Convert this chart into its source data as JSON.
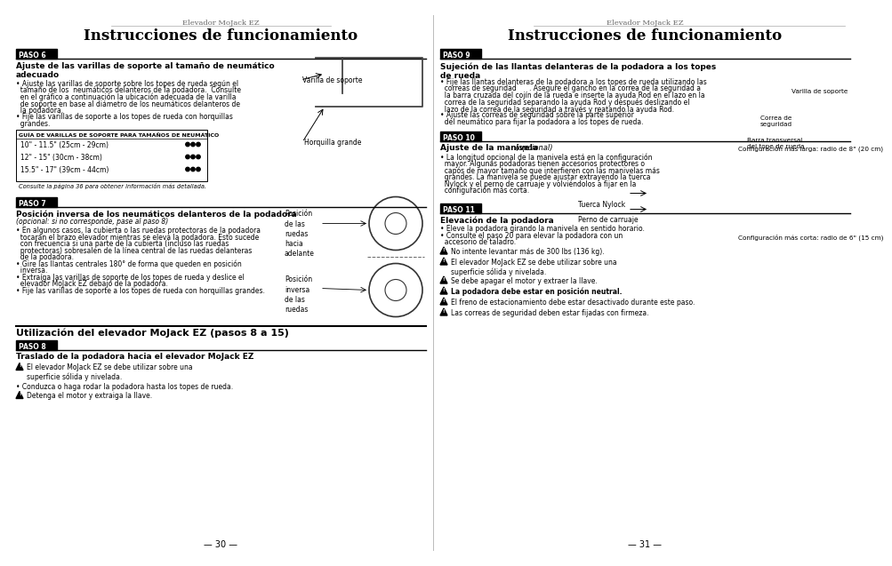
{
  "bg_color": "#ffffff",
  "left_header_small": "Elevador MoJack EZ",
  "left_title": "Instrucciones de funcionamiento",
  "right_header_small": "Elevador MoJack EZ",
  "right_title": "Instrucciones de funcionamiento",
  "page_left": "— 30 —",
  "page_right": "— 31 —",
  "paso6_label": "PASO 6",
  "paso6_heading": "Ajuste de las varillas de soporte al tamaño de neumático\nadecuado",
  "paso6_body": [
    "• Ajuste las varillas de soporte sobre los topes de rueda según el",
    "  tamaño de los  neumáticos delanteros de la podadora.  Consulte",
    "  en el gráfico a continuación la ubicación adecuada de la varilla",
    "  de soporte en base al diámetro de los neumáticos delanteros de",
    "  la podadora.",
    "• Fije las varillas de soporte a los topes de rueda con horquillas",
    "  grandes."
  ],
  "table_title": "GUÍA DE VARILLAS DE SOPORTE PARA TAMAÑOS DE NEUMÁTICO",
  "table_rows": [
    "10\" - 11.5\" (25cm - 29cm)",
    "12\" - 15\" (30cm - 38cm)",
    "15.5\" - 17\" (39cm - 44cm)"
  ],
  "table_note": "Consulte la página 36 para obtener información más detallada.",
  "paso6_label1": "Varilla de soporte",
  "paso6_label2": "Horquilla grande",
  "paso7_label": "PASO 7",
  "paso7_heading": "Posición inversa de los neumáticos delanteros de la podadora",
  "paso7_subheading": "(opcional: si no corresponde, pase al paso 8)",
  "paso7_body": [
    "• En algunos casos, la cubierta o las ruedas protectoras de la podadora",
    "  tocarán el brazo elevador mientras se eleva la podadora. Esto sucede",
    "  con frecuencia si una parte de la cubierta (incluso las ruedas",
    "  protectoras) sobresalen de la línea central de las ruedas delanteras",
    "  de la podadora.",
    "• Gire las llantas centrales 180° de forma que queden en posición",
    "  inversa.",
    "• Extraíga las varillas de soporte de los topes de rueda y deslice el",
    "  elevador MoJack EZ debajo de la podadora.",
    "• Fije las varillas de soporte a los topes de rueda con horquillas grandes."
  ],
  "paso7_label1": "Posición\nde las\nruedas\nhacia\nadelante",
  "paso7_label2": "Posición\ninversa\nde las\nruedas",
  "sec2_title": "Utilización del elevador MoJack EZ (pasos 8 a 15)",
  "paso8_label": "PASO 8",
  "paso8_heading": "Traslado de la podadora hacia el elevador MoJack EZ",
  "paso8_warn1": "El elevador MoJack EZ se debe utilizar sobre una\nsuperficie sólida y nivelada.",
  "paso8_body": "• Conduzca o haga rodar la podadora hasta los topes de rueda.",
  "paso8_warn2": "Detenga el motor y extraiga la llave.",
  "paso9_label": "PASO 9",
  "paso9_heading": "Sujeción de las llantas delanteras de la podadora a los topes\nde rueda",
  "paso9_body": [
    "• Fije las llantas delanteras de la podadora a los topes de rueda utilizando las",
    "  correas de seguridad      . Asegure el gancho en la correa de la seguridad a",
    "  la barra cruzada del cojín de la rueda e inserte la ayuda Rod en el lazo en la",
    "  correa de la seguridad separando la ayuda Rod y después deslizando el",
    "  lazo de la correa de la seguridad a través y reatando la ayuda Rod.",
    "• Ajuste las correas de seguridad sobre la parte superior",
    "  del neumático para fijar la podadora a los topes de rueda."
  ],
  "paso9_label1": "Correa de\nseguridad",
  "paso9_label2": "Barra transversal\ndel tope de rueda",
  "paso9_label3": "Varilla de soporte",
  "paso10_label": "PASO 10",
  "paso10_heading": "Ajuste de la manivela",
  "paso10_heading_opt": " (opcional)",
  "paso10_body": [
    "• La longitud opcional de la manivela está en la configuración",
    "  mayor. Algunas podadoras tienen accesorios protectores o",
    "  capós de mayor tamaño que interfieren con las manivelas más",
    "  grandes. La manivela se puede ajustar extrayendo la tuerca",
    "  Nylock y el perno de carruaje y volviéndolos a fijar en la",
    "  configuración más corta."
  ],
  "paso10_label1": "Configuración más larga: radio de 8\" (20 cm)",
  "paso10_label2": "Tuerca Nylock",
  "paso10_label3": "Perno de carruaje",
  "paso10_label4": "Configuración más corta: radio de 6\" (15 cm)",
  "paso11_label": "PASO 11",
  "paso11_heading": "Elevación de la podadora",
  "paso11_body": [
    "• Eleve la podadora girando la manivela en sentido horario.",
    "• Consulte el paso 20 para elevar la podadora con un",
    "  accesorio de taladro."
  ],
  "paso11_warns": [
    {
      "text": "No intente levantar más de 300 lbs (136 kg).",
      "bold": false
    },
    {
      "text": "El elevador MoJack EZ se debe utilizar sobre una\nsuperficie sólida y nivelada.",
      "bold": false
    },
    {
      "text": "Se debe apagar el motor y extraer la llave.",
      "bold": false
    },
    {
      "text": "La podadora debe estar en posición neutral.",
      "bold": true
    },
    {
      "text": "El freno de estacionamiento debe estar desactivado durante este paso.",
      "bold": false
    },
    {
      "text": "Las correas de seguridad deben estar fijadas con firmeza.",
      "bold": false
    }
  ]
}
